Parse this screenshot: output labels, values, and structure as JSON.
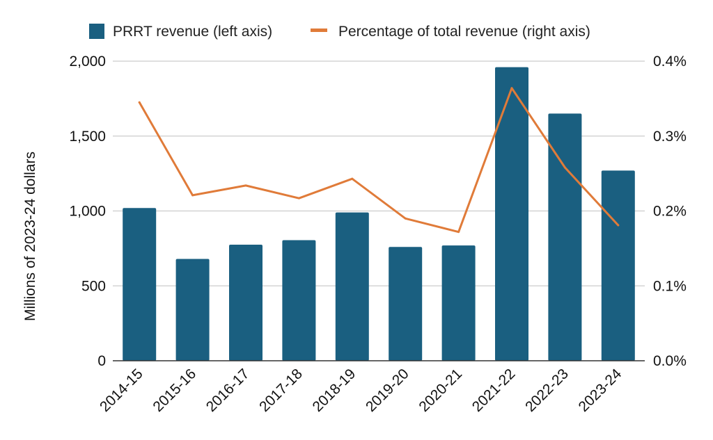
{
  "chart_data": {
    "type": "bar",
    "categories": [
      "2014-15",
      "2015-16",
      "2016-17",
      "2017-18",
      "2018-19",
      "2019-20",
      "2020-21",
      "2021-22",
      "2022-23",
      "2023-24"
    ],
    "series": [
      {
        "name": "PRRT revenue (left axis)",
        "type": "bar",
        "axis": "left",
        "color": "#1a5f80",
        "values": [
          1020,
          680,
          775,
          805,
          990,
          760,
          770,
          1960,
          1650,
          1270
        ]
      },
      {
        "name": "Percentage of total revenue (right axis)",
        "type": "line",
        "axis": "right",
        "color": "#e07b39",
        "values": [
          0.345,
          0.221,
          0.234,
          0.217,
          0.243,
          0.19,
          0.172,
          0.364,
          0.258,
          0.181
        ]
      }
    ],
    "ylabel": "Millions of 2023-24 dollars",
    "ylim": [
      0,
      2000
    ],
    "y_ticks": [
      "0",
      "500",
      "1,000",
      "1,500",
      "2,000"
    ],
    "y_right_lim": [
      0,
      0.4
    ],
    "y_right_ticks": [
      "0.0%",
      "0.1%",
      "0.2%",
      "0.3%",
      "0.4%"
    ],
    "grid": true,
    "legend_position": "top"
  }
}
